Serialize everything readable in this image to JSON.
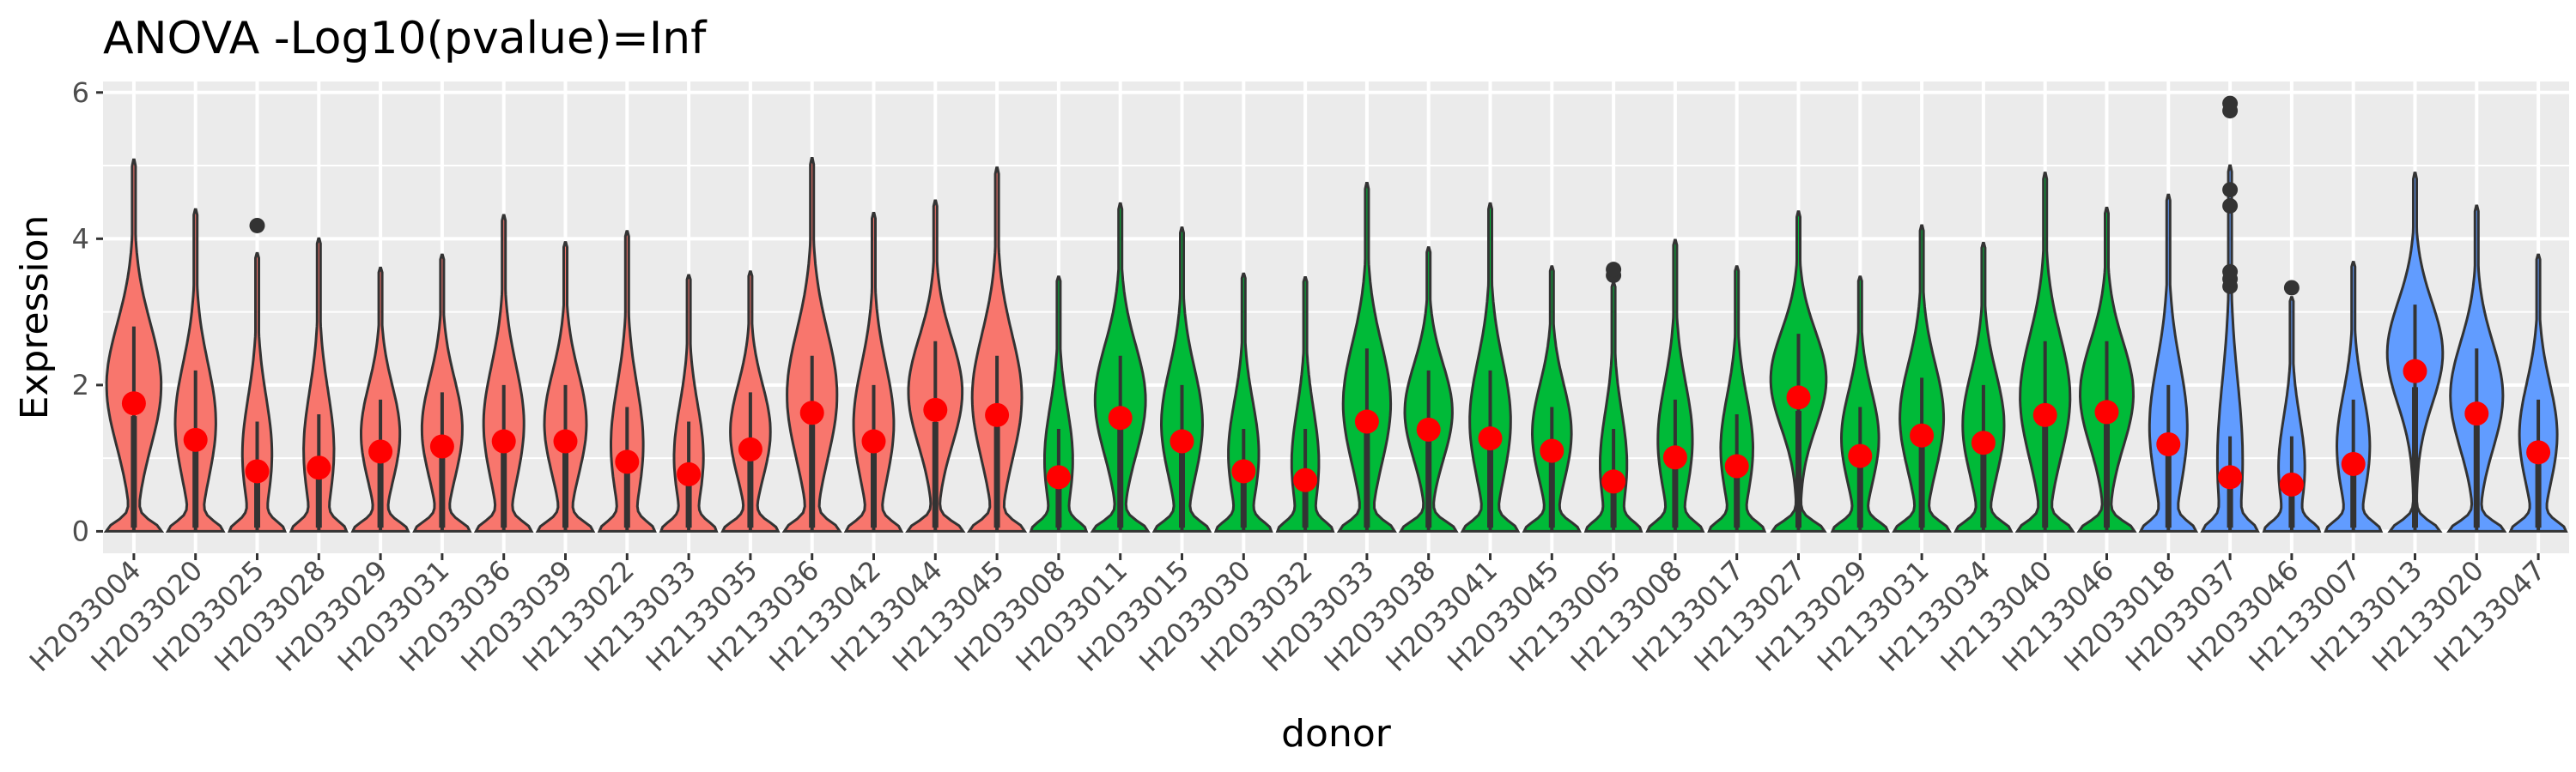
{
  "chart_data": {
    "type": "violin",
    "title": "ANOVA -Log10(pvalue)=Inf",
    "xlabel": "donor",
    "ylabel": "Expression",
    "ylim": [
      -0.3,
      6.15
    ],
    "yticks": [
      0,
      2,
      4,
      6
    ],
    "grid": true,
    "legend": "none",
    "colors": {
      "red": "#F8766D",
      "green": "#00BA38",
      "blue": "#619CFF",
      "mean_point": "#FF0000",
      "panel": "#EBEBEB",
      "grid": "#FFFFFF"
    },
    "categories": [
      "H2033004",
      "H2033020",
      "H2033025",
      "H2033028",
      "H2033029",
      "H2033031",
      "H2033036",
      "H2033039",
      "H2133022",
      "H2133033",
      "H2133035",
      "H2133036",
      "H2133042",
      "H2133044",
      "H2133045",
      "H2033008",
      "H2033011",
      "H2033015",
      "H2033030",
      "H2033032",
      "H2033033",
      "H2033038",
      "H2033041",
      "H2033045",
      "H2133005",
      "H2133008",
      "H2133017",
      "H2133027",
      "H2133029",
      "H2133031",
      "H2133034",
      "H2133040",
      "H2133046",
      "H2033018",
      "H2033037",
      "H2033046",
      "H2133007",
      "H2133013",
      "H2133020",
      "H2133047"
    ],
    "groups": [
      "red",
      "red",
      "red",
      "red",
      "red",
      "red",
      "red",
      "red",
      "red",
      "red",
      "red",
      "red",
      "red",
      "red",
      "red",
      "green",
      "green",
      "green",
      "green",
      "green",
      "green",
      "green",
      "green",
      "green",
      "green",
      "green",
      "green",
      "green",
      "green",
      "green",
      "green",
      "green",
      "green",
      "blue",
      "blue",
      "blue",
      "blue",
      "blue",
      "blue",
      "blue"
    ],
    "means": [
      1.75,
      1.25,
      0.82,
      0.87,
      1.09,
      1.16,
      1.23,
      1.23,
      0.95,
      0.78,
      1.12,
      1.62,
      1.23,
      1.66,
      1.59,
      0.74,
      1.55,
      1.23,
      0.82,
      0.7,
      1.5,
      1.39,
      1.27,
      1.1,
      0.68,
      1.01,
      0.89,
      1.83,
      1.03,
      1.31,
      1.21,
      1.59,
      1.63,
      1.19,
      0.74,
      0.64,
      0.92,
      2.19,
      1.61,
      1.08
    ],
    "maxima": [
      5.08,
      4.4,
      3.8,
      4.0,
      3.6,
      3.78,
      4.32,
      3.95,
      4.1,
      3.5,
      3.55,
      5.1,
      4.35,
      4.52,
      4.97,
      3.48,
      4.48,
      4.15,
      3.52,
      3.47,
      4.76,
      3.88,
      4.48,
      3.62,
      3.4,
      3.98,
      3.62,
      4.37,
      3.48,
      4.18,
      3.94,
      4.9,
      4.42,
      4.6,
      5.0,
      3.2,
      3.68,
      4.9,
      4.45,
      3.78
    ],
    "upper_whisker": [
      2.8,
      2.2,
      1.5,
      1.6,
      1.8,
      1.9,
      2.0,
      2.0,
      1.7,
      1.5,
      1.9,
      2.4,
      2.0,
      2.6,
      2.4,
      1.4,
      2.4,
      2.0,
      1.4,
      1.4,
      2.5,
      2.2,
      2.2,
      1.7,
      1.4,
      1.8,
      1.6,
      2.7,
      1.7,
      2.1,
      2.0,
      2.6,
      2.6,
      2.0,
      1.3,
      1.3,
      1.8,
      3.1,
      2.5,
      1.8
    ],
    "outliers": [
      {
        "category": "H2033025",
        "values": [
          4.18
        ]
      },
      {
        "category": "H2133005",
        "values": [
          3.5,
          3.58
        ]
      },
      {
        "category": "H2033037",
        "values": [
          3.35,
          3.45,
          3.55,
          4.45,
          4.67,
          5.75,
          5.85
        ]
      },
      {
        "category": "H2033046",
        "values": [
          3.33
        ]
      }
    ]
  }
}
